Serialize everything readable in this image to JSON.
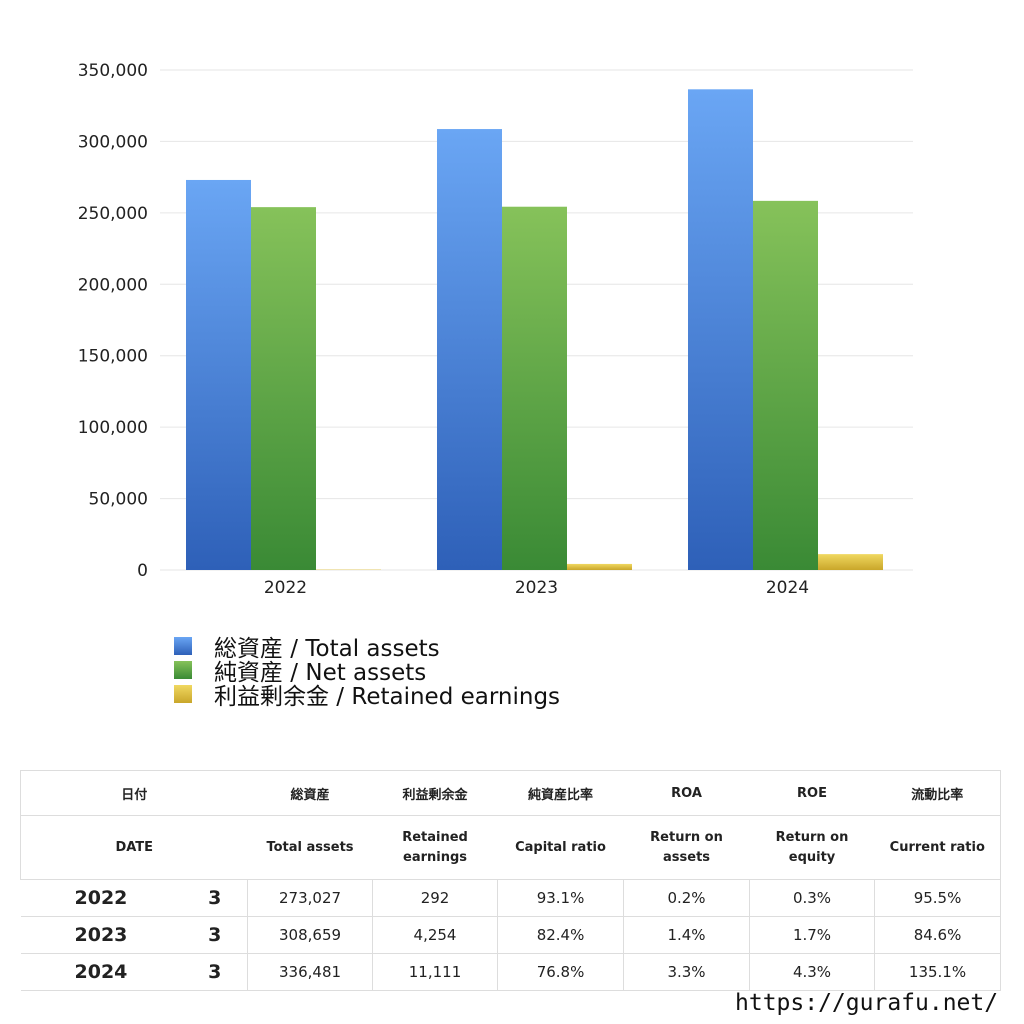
{
  "chart_data": {
    "type": "bar",
    "categories": [
      "2022",
      "2023",
      "2024"
    ],
    "series": [
      {
        "name": "総資産 / Total assets",
        "values": [
          273027,
          308659,
          336481
        ],
        "color": "#4a86de"
      },
      {
        "name": "純資産 / Net assets",
        "values": [
          254000,
          254300,
          258400
        ],
        "color": "#5aa845"
      },
      {
        "name": "利益剰余金 / Retained earnings",
        "values": [
          292,
          4254,
          11111
        ],
        "color": "#e3c23c"
      }
    ],
    "yticks": [
      "0",
      "50,000",
      "100,000",
      "150,000",
      "200,000",
      "250,000",
      "300,000",
      "350,000"
    ],
    "ylim": [
      0,
      350000
    ],
    "grid": true,
    "legend_position": "bottom-left"
  },
  "table": {
    "headers_ja": [
      "日付",
      "総資産",
      "利益剰余金",
      "純資産比率",
      "ROA",
      "ROE",
      "流動比率"
    ],
    "headers_en": [
      "DATE",
      "Total assets",
      "Retained earnings",
      "Capital ratio",
      "Return on assets",
      "Return on equity",
      "Current ratio"
    ],
    "rows": [
      {
        "year": "2022",
        "month": "3",
        "total_assets": "273,027",
        "retained_earnings": "292",
        "capital_ratio": "93.1%",
        "roa": "0.2%",
        "roe": "0.3%",
        "current_ratio": "95.5%"
      },
      {
        "year": "2023",
        "month": "3",
        "total_assets": "308,659",
        "retained_earnings": "4,254",
        "capital_ratio": "82.4%",
        "roa": "1.4%",
        "roe": "1.7%",
        "current_ratio": "84.6%"
      },
      {
        "year": "2024",
        "month": "3",
        "total_assets": "336,481",
        "retained_earnings": "11,111",
        "capital_ratio": "76.8%",
        "roa": "3.3%",
        "roe": "4.3%",
        "current_ratio": "135.1%"
      }
    ]
  },
  "footer": {
    "url": "https://gurafu.net/"
  }
}
